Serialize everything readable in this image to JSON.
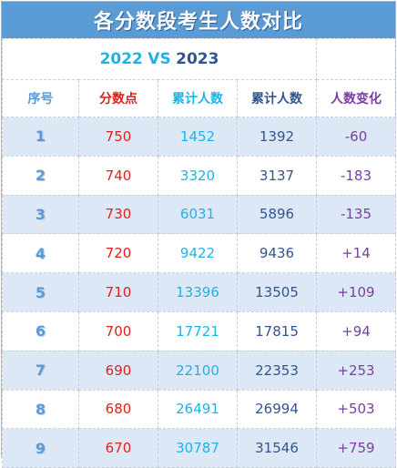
{
  "title": "各分数段考生人数对比",
  "subtitle": {
    "year_a": "2022",
    "vs": "VS",
    "year_b": "2023"
  },
  "headers": [
    "序号",
    "分数点",
    "累计人数",
    "累计人数",
    "人数变化"
  ],
  "rows": [
    {
      "idx": "1",
      "score": "750",
      "cum_2022": "1452",
      "cum_2023": "1392",
      "change": "-60"
    },
    {
      "idx": "2",
      "score": "740",
      "cum_2022": "3320",
      "cum_2023": "3137",
      "change": "-183"
    },
    {
      "idx": "3",
      "score": "730",
      "cum_2022": "6031",
      "cum_2023": "5896",
      "change": "-135"
    },
    {
      "idx": "4",
      "score": "720",
      "cum_2022": "9422",
      "cum_2023": "9436",
      "change": "+14"
    },
    {
      "idx": "5",
      "score": "710",
      "cum_2022": "13396",
      "cum_2023": "13505",
      "change": "+109"
    },
    {
      "idx": "6",
      "score": "700",
      "cum_2022": "17721",
      "cum_2023": "17815",
      "change": "+94"
    },
    {
      "idx": "7",
      "score": "690",
      "cum_2022": "22100",
      "cum_2023": "22353",
      "change": "+253"
    },
    {
      "idx": "8",
      "score": "680",
      "cum_2022": "26491",
      "cum_2023": "26994",
      "change": "+503"
    },
    {
      "idx": "9",
      "score": "670",
      "cum_2022": "30787",
      "cum_2023": "31546",
      "change": "+759"
    }
  ],
  "colors": {
    "title_bg": "#5b9bd5",
    "index": "#5b9bd5",
    "score": "#e0201c",
    "cum_2022": "#1cb3e6",
    "cum_2023": "#33558f",
    "change": "#7a3fa0",
    "stripe": "#dde8f6"
  }
}
